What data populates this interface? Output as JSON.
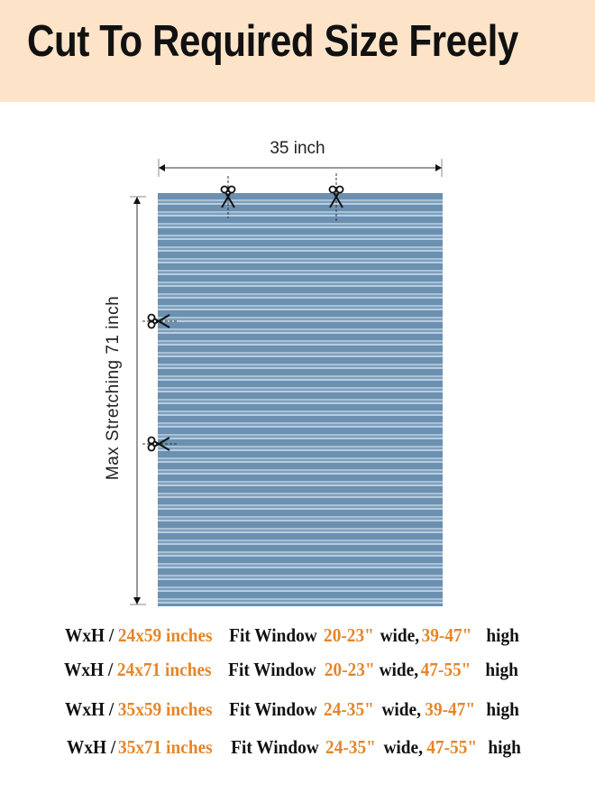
{
  "banner": {
    "title": "Cut To Required Size Freely",
    "background": "#fde4c8"
  },
  "diagram": {
    "width_label": "35 inch",
    "height_label": "Max Stretching 71 inch",
    "shade_color": "#6b90b0",
    "icons": [
      "scissors-icon"
    ]
  },
  "sizes": [
    {
      "prefix": "WxH /",
      "size": "24x59 inches",
      "fit": "Fit Window",
      "width_range": "20-23\"",
      "wide": "wide,",
      "height_range": "39-47\"",
      "high": "high"
    },
    {
      "prefix": "WxH /",
      "size": "24x71 inches",
      "fit": "Fit Window",
      "width_range": "20-23\"",
      "wide": "wide,",
      "height_range": "47-55\"",
      "high": "high"
    },
    {
      "prefix": "WxH /",
      "size": "35x59 inches",
      "fit": "Fit Window",
      "width_range": "24-35\"",
      "wide": "wide,",
      "height_range": "39-47\"",
      "high": "high"
    },
    {
      "prefix": "WxH /",
      "size": "35x71 inches",
      "fit": "Fit Window",
      "width_range": "24-35\"",
      "wide": "wide,",
      "height_range": "47-55\"",
      "high": "high"
    }
  ],
  "accent": "#e5862a"
}
